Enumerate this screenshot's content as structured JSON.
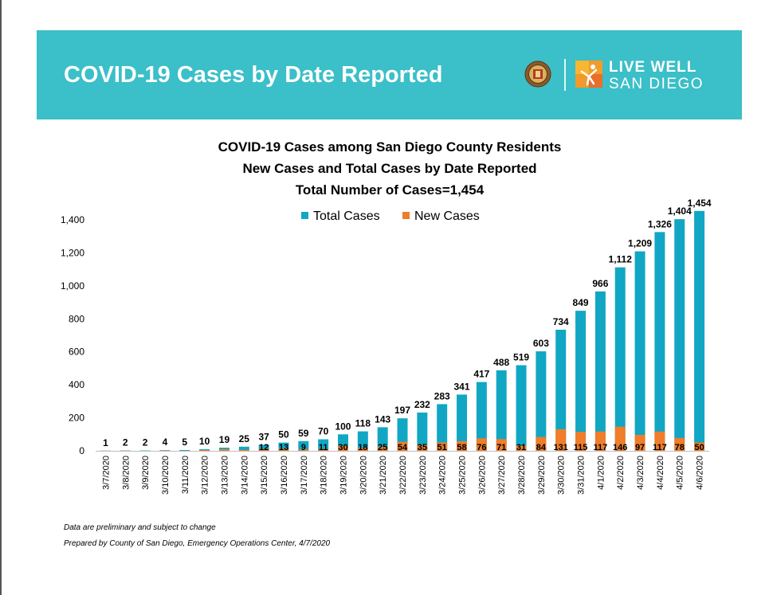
{
  "header": {
    "title": "COVID-19 Cases by Date Reported",
    "logo_line1": "LIVE WELL",
    "logo_line2": "SAN DIEGO"
  },
  "colors": {
    "banner": "#3bbfc8",
    "total": "#11a7c4",
    "new": "#ef7d2a"
  },
  "chart_data": {
    "type": "bar",
    "title": "COVID-19 Cases among San Diego County Residents",
    "subtitle": "New Cases and Total Cases by Date Reported",
    "subtitle2": "Total Number of Cases=1,454",
    "xlabel": "",
    "ylabel": "",
    "ylim": [
      0,
      1400
    ],
    "yticks": [
      "0",
      "200",
      "400",
      "600",
      "800",
      "1,000",
      "1,200",
      "1,400"
    ],
    "legend_position": "top-center",
    "grid": false,
    "categories": [
      "3/7/2020",
      "3/8/2020",
      "3/9/2020",
      "3/10/2020",
      "3/11/2020",
      "3/12/2020",
      "3/13/2020",
      "3/14/2020",
      "3/15/2020",
      "3/16/2020",
      "3/17/2020",
      "3/18/2020",
      "3/19/2020",
      "3/20/2020",
      "3/21/2020",
      "3/22/2020",
      "3/23/2020",
      "3/24/2020",
      "3/25/2020",
      "3/26/2020",
      "3/27/2020",
      "3/28/2020",
      "3/29/2020",
      "3/30/2020",
      "3/31/2020",
      "4/1/2020",
      "4/2/2020",
      "4/3/2020",
      "4/4/2020",
      "4/5/2020",
      "4/6/2020"
    ],
    "series": [
      {
        "name": "Total Cases",
        "values": [
          1,
          2,
          2,
          4,
          5,
          10,
          19,
          25,
          37,
          50,
          59,
          70,
          100,
          118,
          143,
          197,
          232,
          283,
          341,
          417,
          488,
          519,
          603,
          734,
          849,
          966,
          1112,
          1209,
          1326,
          1404,
          1454
        ],
        "labels": [
          "1",
          "2",
          "2",
          "4",
          "5",
          "10",
          "19",
          "25",
          "37",
          "50",
          "59",
          "70",
          "100",
          "118",
          "143",
          "197",
          "232",
          "283",
          "341",
          "417",
          "488",
          "519",
          "603",
          "734",
          "849",
          "966",
          "1,112",
          "1,209",
          "1,326",
          "1,404",
          "1,454"
        ]
      },
      {
        "name": "New Cases",
        "values": [
          1,
          1,
          0,
          2,
          1,
          5,
          9,
          6,
          12,
          13,
          9,
          11,
          30,
          18,
          25,
          54,
          35,
          51,
          58,
          76,
          71,
          31,
          84,
          131,
          115,
          117,
          146,
          97,
          117,
          78,
          50
        ],
        "labels": [
          "",
          "",
          "",
          "",
          "",
          "",
          "",
          "",
          "12",
          "13",
          "9",
          "11",
          "30",
          "18",
          "25",
          "54",
          "35",
          "51",
          "58",
          "76",
          "71",
          "31",
          "84",
          "131",
          "115",
          "117",
          "146",
          "97",
          "117",
          "78",
          "50"
        ]
      }
    ]
  },
  "footer": {
    "note1": "Data are preliminary and subject to change",
    "note2": "Prepared by County of San Diego, Emergency Operations Center, 4/7/2020"
  }
}
